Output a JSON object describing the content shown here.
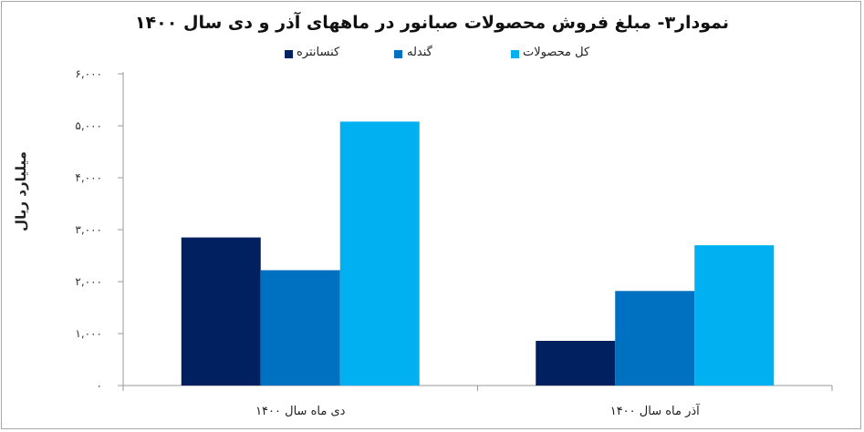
{
  "chart_data": {
    "type": "bar",
    "title": "نمودار۳- مبلغ فروش محصولات صبانور در ماههای آذر و دی سال ۱۴۰۰",
    "ylabel": "میلیارد ریال",
    "xlabel": "",
    "categories": [
      "دی ماه سال ۱۴۰۰",
      "آذر ماه سال ۱۴۰۰"
    ],
    "series": [
      {
        "name": "کنسانتره",
        "color": "#002060",
        "values": [
          2850,
          860
        ]
      },
      {
        "name": "گندله",
        "color": "#0070c0",
        "values": [
          2220,
          1820
        ]
      },
      {
        "name": "کل محصولات",
        "color": "#00b0f0",
        "values": [
          5080,
          2700
        ]
      }
    ],
    "ylim": [
      0,
      6000
    ],
    "yticks": [
      "۰",
      "۱,۰۰۰",
      "۲,۰۰۰",
      "۳,۰۰۰",
      "۴,۰۰۰",
      "۵,۰۰۰",
      "۶,۰۰۰"
    ],
    "grid": false,
    "legend": "top"
  }
}
